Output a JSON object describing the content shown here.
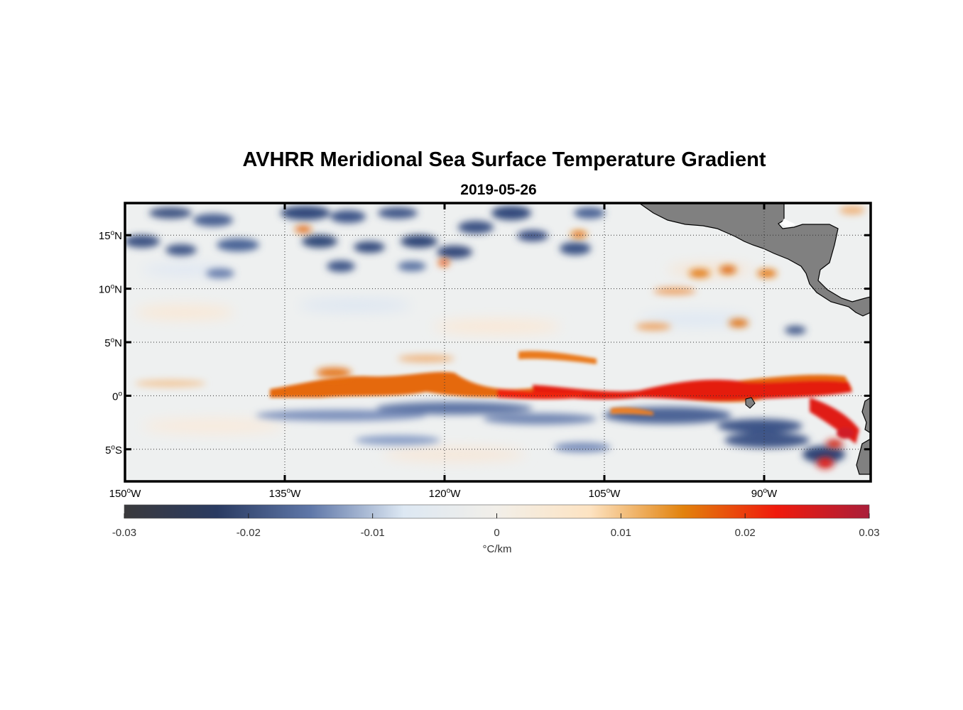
{
  "title": "AVHRR Meridional Sea Surface Temperature Gradient",
  "subtitle": "2019-05-26",
  "map": {
    "lon_range": [
      -150,
      -80
    ],
    "lat_range": [
      -8,
      18
    ],
    "lon_ticks": [
      {
        "value": -150,
        "deg": "150",
        "hemi": "W"
      },
      {
        "value": -135,
        "deg": "135",
        "hemi": "W"
      },
      {
        "value": -120,
        "deg": "120",
        "hemi": "W"
      },
      {
        "value": -105,
        "deg": "105",
        "hemi": "W"
      },
      {
        "value": -90,
        "deg": "90",
        "hemi": "W"
      }
    ],
    "lat_ticks": [
      {
        "value": 15,
        "deg": "15",
        "hemi": "N"
      },
      {
        "value": 10,
        "deg": "10",
        "hemi": "N"
      },
      {
        "value": 5,
        "deg": "5",
        "hemi": "N"
      },
      {
        "value": 0,
        "deg": "0",
        "hemi": ""
      },
      {
        "value": -5,
        "deg": "5",
        "hemi": "S"
      }
    ],
    "grid": "dotted",
    "land_color": "#808080"
  },
  "colorbar": {
    "label": "°C/km",
    "range": [
      -0.03,
      0.03
    ],
    "ticks": [
      "-0.03",
      "-0.02",
      "-0.01",
      "0",
      "0.01",
      "0.02",
      "0.03"
    ],
    "tick_values": [
      -0.03,
      -0.02,
      -0.01,
      0,
      0.01,
      0.02,
      0.03
    ],
    "stops": [
      "#3a3a3c",
      "#2a3b62",
      "#5f77a8",
      "#dde8f3",
      "#f2efe9",
      "#fde3c2",
      "#e2820c",
      "#f01a0c",
      "#aa1e3a"
    ]
  },
  "chart_data": {
    "type": "heatmap",
    "variable": "meridional SST gradient",
    "units": "°C/km",
    "date": "2019-05-26",
    "features": [
      {
        "kind": "positive front",
        "lon": [
          -135,
          -82
        ],
        "lat_center": [
          1,
          0.5
        ],
        "peak": 0.025
      },
      {
        "kind": "negative band",
        "lon": [
          -128,
          -95
        ],
        "lat_center": [
          -1.5,
          -2.5
        ],
        "peak": -0.015
      },
      {
        "kind": "negative patches",
        "lon": [
          -150,
          -105
        ],
        "lat_center": [
          14,
          13
        ],
        "peak": -0.016
      },
      {
        "kind": "positive coastal",
        "lon": [
          -86,
          -80
        ],
        "lat_center": [
          -2,
          -6
        ],
        "peak": 0.03
      }
    ]
  }
}
